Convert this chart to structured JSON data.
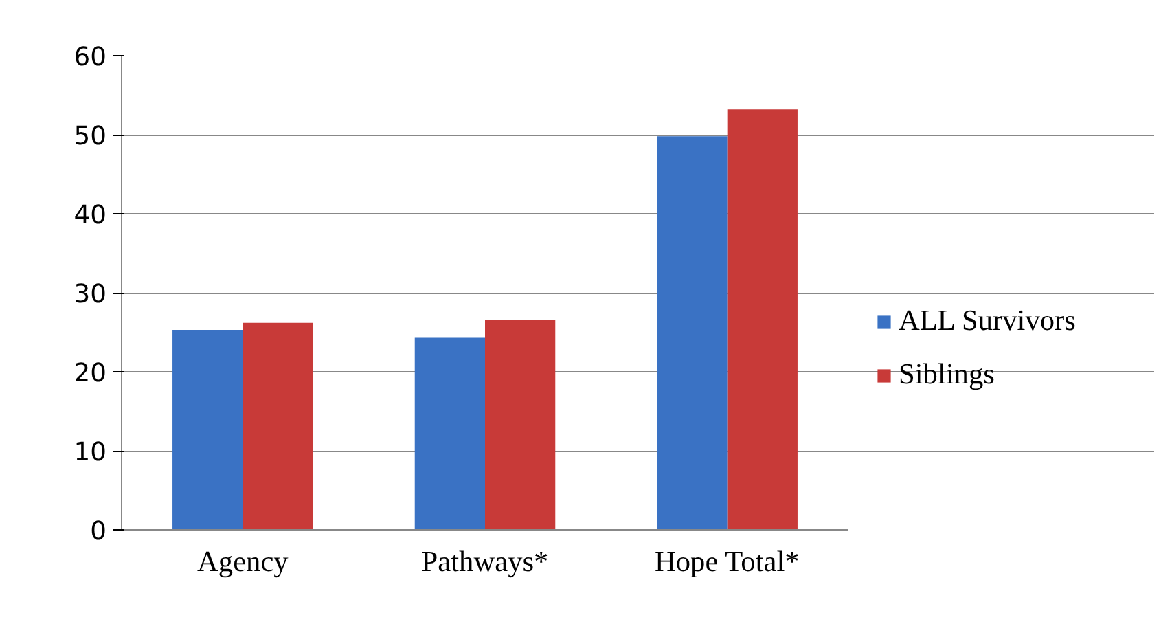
{
  "chart_data": {
    "type": "bar",
    "categories": [
      "Agency",
      "Pathways*",
      "Hope Total*"
    ],
    "series": [
      {
        "name": "ALL Survivors",
        "color": "#3a72c4",
        "values": [
          25.3,
          24.3,
          49.8
        ]
      },
      {
        "name": "Siblings",
        "color": "#c83a38",
        "values": [
          26.2,
          26.6,
          53.2
        ]
      }
    ],
    "ylim": [
      0,
      60
    ],
    "yticks": [
      0,
      10,
      20,
      30,
      40,
      50,
      60
    ],
    "grid": "y",
    "legend": "right"
  }
}
